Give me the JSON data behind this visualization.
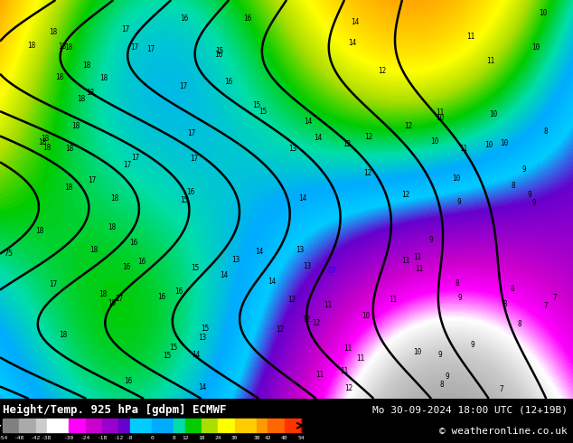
{
  "title_left": "Height/Temp. 925 hPa [gdpm] ECMWF",
  "title_right": "Mo 30-09-2024 18:00 UTC (12+19B)",
  "credit": "© weatheronline.co.uk",
  "colorbar_levels": [
    -54,
    -48,
    -42,
    -38,
    -30,
    -24,
    -18,
    -12,
    -8,
    0,
    8,
    12,
    18,
    24,
    30,
    38,
    42,
    48,
    54
  ],
  "colorbar_colors": [
    "#808080",
    "#aaaaaa",
    "#cccccc",
    "#ffffff",
    "#ff00ff",
    "#cc00cc",
    "#9900cc",
    "#6600cc",
    "#00ccff",
    "#00aaff",
    "#00ddaa",
    "#00cc00",
    "#aadd00",
    "#ffff00",
    "#ffcc00",
    "#ff9900",
    "#ff6600",
    "#ff3300",
    "#cc0000"
  ],
  "bg_color": "#f5c842",
  "map_bg": "#f0a800",
  "fig_width": 6.34,
  "fig_height": 4.9,
  "dpi": 100
}
